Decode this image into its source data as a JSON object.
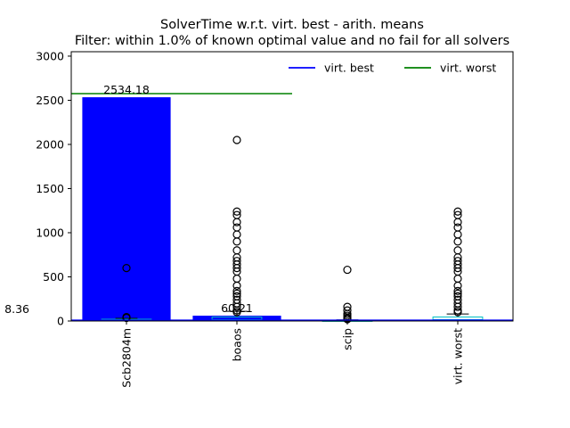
{
  "chart_data": {
    "type": "bar",
    "title": "SolverTime w.r.t. virt. best - arith. means",
    "subtitle": "Filter: within 1.0% of known optimal value and no fail for all solvers",
    "categories": [
      "Scb2804m",
      "boaos",
      "scip",
      "virt. worst"
    ],
    "bar_values": [
      2534.18,
      60.21,
      0,
      0
    ],
    "bar_labels": [
      "2534.18",
      "60.21",
      "",
      ""
    ],
    "ylim": [
      0,
      3050
    ],
    "yticks": [
      0,
      500,
      1000,
      1500,
      2000,
      2500,
      3000
    ],
    "reference_lines": [
      {
        "name": "virt. best",
        "value": 8.36,
        "label": "8.36",
        "color": "#0000ff"
      },
      {
        "name": "virt. worst",
        "value": 2575,
        "label": "",
        "color": "#008000"
      }
    ],
    "legend": {
      "placement": "top-right",
      "entries": [
        "virt. best",
        "virt. worst"
      ]
    },
    "boxplots": [
      {
        "category": "Scb2804m",
        "q1": 3,
        "median": 8,
        "q3": 20,
        "whisker_low": 0,
        "whisker_high": 30,
        "outliers": [
          600,
          45,
          40,
          35
        ]
      },
      {
        "category": "boaos",
        "q1": 5,
        "median": 15,
        "q3": 45,
        "whisker_low": 0,
        "whisker_high": 110,
        "outliers": [
          2050,
          1240,
          1200,
          1120,
          1060,
          980,
          900,
          800,
          720,
          680,
          640,
          600,
          560,
          480,
          400,
          340,
          310,
          280,
          240,
          200,
          160,
          120,
          100
        ]
      },
      {
        "category": "scip",
        "q1": 1,
        "median": 3,
        "q3": 6,
        "whisker_low": 0,
        "whisker_high": 12,
        "outliers": [
          580,
          160,
          120,
          80,
          60,
          40,
          30,
          20
        ]
      },
      {
        "category": "virt. worst",
        "q1": 5,
        "median": 15,
        "q3": 45,
        "whisker_low": 0,
        "whisker_high": 80,
        "outliers": [
          1240,
          1200,
          1120,
          1060,
          980,
          900,
          800,
          720,
          680,
          640,
          600,
          560,
          480,
          400,
          340,
          310,
          280,
          240,
          200,
          160,
          120,
          100
        ]
      }
    ],
    "colors": {
      "bar": "#0000ff",
      "box": "#00bfbf"
    },
    "grid": false
  }
}
